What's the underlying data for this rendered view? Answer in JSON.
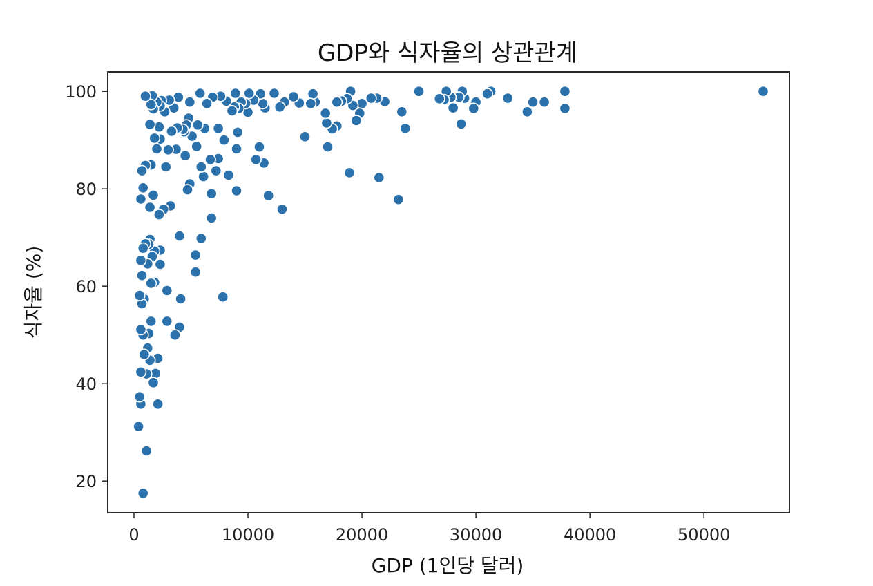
{
  "chart_data": {
    "type": "scatter",
    "title": "GDP와 식자율의 상관관계",
    "xlabel": "GDP (1인당 달러)",
    "ylabel": "식자율 (%)",
    "xlim": [
      -2300,
      57500
    ],
    "ylim": [
      13.5,
      104
    ],
    "xticks": [
      0,
      10000,
      20000,
      30000,
      40000,
      50000
    ],
    "xtick_labels": [
      "0",
      "10000",
      "20000",
      "30000",
      "40000",
      "50000"
    ],
    "yticks": [
      20,
      40,
      60,
      80,
      100
    ],
    "ytick_labels": [
      "20",
      "40",
      "60",
      "80",
      "100"
    ],
    "grid": false,
    "legend": null,
    "colors": {
      "point": "#2b72ac"
    },
    "series": [
      {
        "points": [
          [
            55200,
            100
          ],
          [
            37800,
            100
          ],
          [
            37800,
            96.5
          ],
          [
            36000,
            97.8
          ],
          [
            35000,
            97.8
          ],
          [
            34500,
            95.8
          ],
          [
            32800,
            98.6
          ],
          [
            31300,
            100
          ],
          [
            31000,
            99.5
          ],
          [
            30000,
            97.8
          ],
          [
            29800,
            96.5
          ],
          [
            29000,
            98.6
          ],
          [
            28800,
            100
          ],
          [
            28500,
            98.8
          ],
          [
            28700,
            93.3
          ],
          [
            28000,
            96.6
          ],
          [
            27800,
            98.8
          ],
          [
            27400,
            100
          ],
          [
            27200,
            98.3
          ],
          [
            26800,
            98.5
          ],
          [
            25000,
            100
          ],
          [
            23800,
            92.4
          ],
          [
            23500,
            95.8
          ],
          [
            23200,
            77.8
          ],
          [
            22000,
            97.9
          ],
          [
            21500,
            82.3
          ],
          [
            21300,
            98.6
          ],
          [
            20800,
            98.6
          ],
          [
            20000,
            97.5
          ],
          [
            19800,
            95.5
          ],
          [
            19500,
            94
          ],
          [
            19200,
            97.1
          ],
          [
            19000,
            100
          ],
          [
            18900,
            83.3
          ],
          [
            18700,
            98.5
          ],
          [
            18200,
            98
          ],
          [
            17800,
            97.8
          ],
          [
            17800,
            92.9
          ],
          [
            17400,
            92.3
          ],
          [
            17000,
            88.6
          ],
          [
            16900,
            93.5
          ],
          [
            16800,
            95.5
          ],
          [
            15900,
            97.8
          ],
          [
            15700,
            99.5
          ],
          [
            15500,
            97.5
          ],
          [
            15000,
            90.7
          ],
          [
            14500,
            97.6
          ],
          [
            14000,
            98.9
          ],
          [
            13200,
            97.8
          ],
          [
            13000,
            75.8
          ],
          [
            12800,
            96.8
          ],
          [
            12300,
            99.6
          ],
          [
            11800,
            78.6
          ],
          [
            11500,
            96.6
          ],
          [
            11400,
            85.3
          ],
          [
            11300,
            97.5
          ],
          [
            11100,
            99.5
          ],
          [
            11000,
            88.6
          ],
          [
            10700,
            86
          ],
          [
            10500,
            98.2
          ],
          [
            10100,
            99.6
          ],
          [
            10000,
            95.7
          ],
          [
            9800,
            97.5
          ],
          [
            9400,
            97.8
          ],
          [
            9200,
            96.5
          ],
          [
            9100,
            91.6
          ],
          [
            9000,
            88.2
          ],
          [
            9000,
            79.6
          ],
          [
            8900,
            99.6
          ],
          [
            8800,
            96.8
          ],
          [
            8600,
            96
          ],
          [
            8300,
            82.8
          ],
          [
            8100,
            98
          ],
          [
            7900,
            90
          ],
          [
            7800,
            57.8
          ],
          [
            7600,
            99
          ],
          [
            7400,
            86.2
          ],
          [
            7400,
            92.4
          ],
          [
            7200,
            83.7
          ],
          [
            6900,
            98.8
          ],
          [
            6800,
            79
          ],
          [
            6800,
            74
          ],
          [
            6700,
            86
          ],
          [
            6400,
            97.5
          ],
          [
            6200,
            92.4
          ],
          [
            6100,
            82.5
          ],
          [
            5900,
            69.8
          ],
          [
            5900,
            84.5
          ],
          [
            5800,
            99.6
          ],
          [
            5600,
            93.1
          ],
          [
            5500,
            88.7
          ],
          [
            5400,
            66.4
          ],
          [
            5400,
            62.9
          ],
          [
            5100,
            90.8
          ],
          [
            4900,
            81
          ],
          [
            4900,
            97.8
          ],
          [
            4800,
            94.5
          ],
          [
            4700,
            79.8
          ],
          [
            4600,
            93.1
          ],
          [
            4500,
            86.8
          ],
          [
            4400,
            91.7
          ],
          [
            4300,
            92.2
          ],
          [
            4100,
            57.4
          ],
          [
            4000,
            70.3
          ],
          [
            4000,
            51.6
          ],
          [
            3900,
            98.8
          ],
          [
            3800,
            92.5
          ],
          [
            3700,
            88.1
          ],
          [
            3600,
            50
          ],
          [
            3500,
            96.6
          ],
          [
            3300,
            91.8
          ],
          [
            3200,
            76.5
          ],
          [
            3100,
            98.2
          ],
          [
            3000,
            88
          ],
          [
            2900,
            52.8
          ],
          [
            2900,
            59.1
          ],
          [
            2800,
            84.5
          ],
          [
            2700,
            95.8
          ],
          [
            2600,
            75.8
          ],
          [
            2400,
            98.1
          ],
          [
            2300,
            64.5
          ],
          [
            2300,
            97
          ],
          [
            2300,
            90.2
          ],
          [
            2300,
            67.4
          ],
          [
            2200,
            92.7
          ],
          [
            2200,
            74.7
          ],
          [
            2100,
            35.8
          ],
          [
            2100,
            45.2
          ],
          [
            2000,
            88.2
          ],
          [
            2000,
            97.8
          ],
          [
            1900,
            42.1
          ],
          [
            1800,
            60.8
          ],
          [
            1800,
            90.4
          ],
          [
            1800,
            67.2
          ],
          [
            1700,
            96.4
          ],
          [
            1700,
            78.7
          ],
          [
            1700,
            40.2
          ],
          [
            1600,
            99.1
          ],
          [
            1600,
            66.1
          ],
          [
            1500,
            97.3
          ],
          [
            1500,
            60.6
          ],
          [
            1500,
            52.8
          ],
          [
            1500,
            84.9
          ],
          [
            1400,
            93.2
          ],
          [
            1400,
            76.2
          ],
          [
            1400,
            69.6
          ],
          [
            1400,
            44.8
          ],
          [
            1300,
            68.6
          ],
          [
            1300,
            50.3
          ],
          [
            1200,
            64.6
          ],
          [
            1200,
            47.3
          ],
          [
            1100,
            26.2
          ],
          [
            1100,
            42
          ],
          [
            1000,
            99
          ],
          [
            1000,
            84.8
          ],
          [
            1000,
            68.7
          ],
          [
            900,
            57.4
          ],
          [
            900,
            46
          ],
          [
            800,
            80.2
          ],
          [
            800,
            67.8
          ],
          [
            800,
            50
          ],
          [
            800,
            17.5
          ],
          [
            700,
            83.7
          ],
          [
            700,
            62.2
          ],
          [
            700,
            56.4
          ],
          [
            600,
            77.9
          ],
          [
            600,
            65.3
          ],
          [
            600,
            51.1
          ],
          [
            600,
            42.4
          ],
          [
            600,
            35.8
          ],
          [
            500,
            58.1
          ],
          [
            500,
            37.3
          ],
          [
            400,
            31.2
          ]
        ]
      }
    ]
  }
}
